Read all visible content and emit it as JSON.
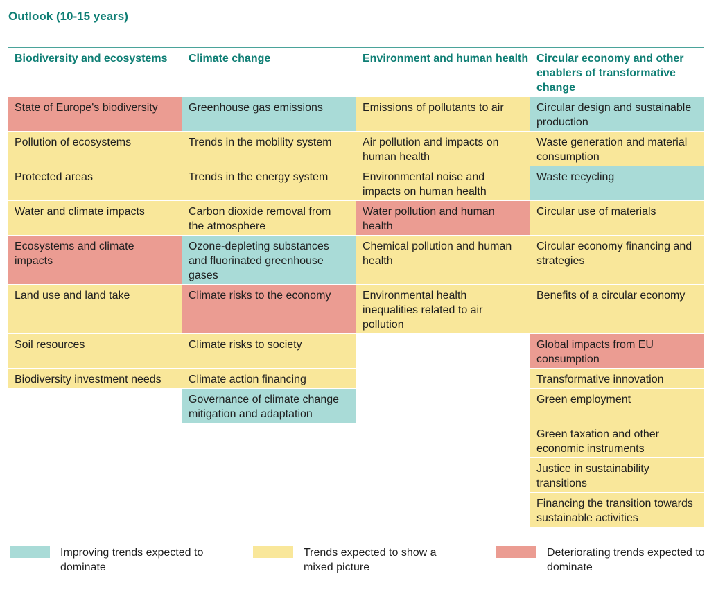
{
  "title": "Outlook (10-15 years)",
  "colors": {
    "improving": "#a9dbd7",
    "mixed": "#f9e79a",
    "deteriorating": "#eb9c92",
    "accent": "#0e7e74"
  },
  "columns": [
    "Biodiversity and ecosystems",
    "Climate change",
    "Environment and human health",
    "Circular economy and other enablers of transformative change"
  ],
  "rows": {
    "biodiversity": [
      {
        "label": "State of Europe's biodiversity",
        "trend": "deteriorating"
      },
      {
        "label": "Pollution of ecosystems",
        "trend": "mixed"
      },
      {
        "label": "Protected areas",
        "trend": "mixed"
      },
      {
        "label": "Water and climate impacts",
        "trend": "mixed"
      },
      {
        "label": "Ecosystems and climate impacts",
        "trend": "deteriorating"
      },
      {
        "label": "Land use and land take",
        "trend": "mixed"
      },
      {
        "label": "Soil resources",
        "trend": "mixed"
      },
      {
        "label": "Biodiversity investment needs",
        "trend": "mixed"
      }
    ],
    "climate": [
      {
        "label": "Greenhouse gas emissions",
        "trend": "improving"
      },
      {
        "label": "Trends in the mobility system",
        "trend": "mixed"
      },
      {
        "label": "Trends in the energy system",
        "trend": "mixed"
      },
      {
        "label": "Carbon dioxide removal from the atmosphere",
        "trend": "mixed"
      },
      {
        "label": "Ozone-depleting substances and fluorinated greenhouse gases",
        "trend": "improving"
      },
      {
        "label": "Climate risks to the economy",
        "trend": "deteriorating"
      },
      {
        "label": "Climate risks to society",
        "trend": "mixed"
      },
      {
        "label": "Climate action financing",
        "trend": "mixed"
      },
      {
        "label": "Governance of climate change mitigation and adaptation",
        "trend": "improving"
      }
    ],
    "health": [
      {
        "label": "Emissions of pollutants to air",
        "trend": "mixed"
      },
      {
        "label": "Air pollution and impacts on human health",
        "trend": "mixed"
      },
      {
        "label": "Environmental noise and impacts on human health",
        "trend": "mixed"
      },
      {
        "label": "Water pollution and human health",
        "trend": "deteriorating"
      },
      {
        "label": "Chemical pollution and human health",
        "trend": "mixed"
      },
      {
        "label": "Environmental health inequalities related to air pollution",
        "trend": "mixed"
      }
    ],
    "circular": [
      {
        "label": "Circular design and sustainable production",
        "trend": "improving"
      },
      {
        "label": "Waste generation and material consumption",
        "trend": "mixed"
      },
      {
        "label": "Waste recycling",
        "trend": "improving"
      },
      {
        "label": "Circular use of materials",
        "trend": "mixed"
      },
      {
        "label": "Circular economy financing and strategies",
        "trend": "mixed"
      },
      {
        "label": "Benefits of a circular economy",
        "trend": "mixed"
      },
      {
        "label": "Global impacts from EU consumption",
        "trend": "deteriorating"
      },
      {
        "label": "Transformative innovation",
        "trend": "mixed"
      },
      {
        "label": "Green employment",
        "trend": "mixed"
      },
      {
        "label": "Green taxation and other economic instruments",
        "trend": "mixed"
      },
      {
        "label": "Justice in sustainability transitions",
        "trend": "mixed"
      },
      {
        "label": "Financing the transition towards sustainable activities",
        "trend": "mixed"
      }
    ]
  },
  "legend": {
    "improving": "Improving trends expected to dominate",
    "mixed": "Trends expected to show a mixed picture",
    "deteriorating": "Deteriorating trends expected to dominate"
  }
}
